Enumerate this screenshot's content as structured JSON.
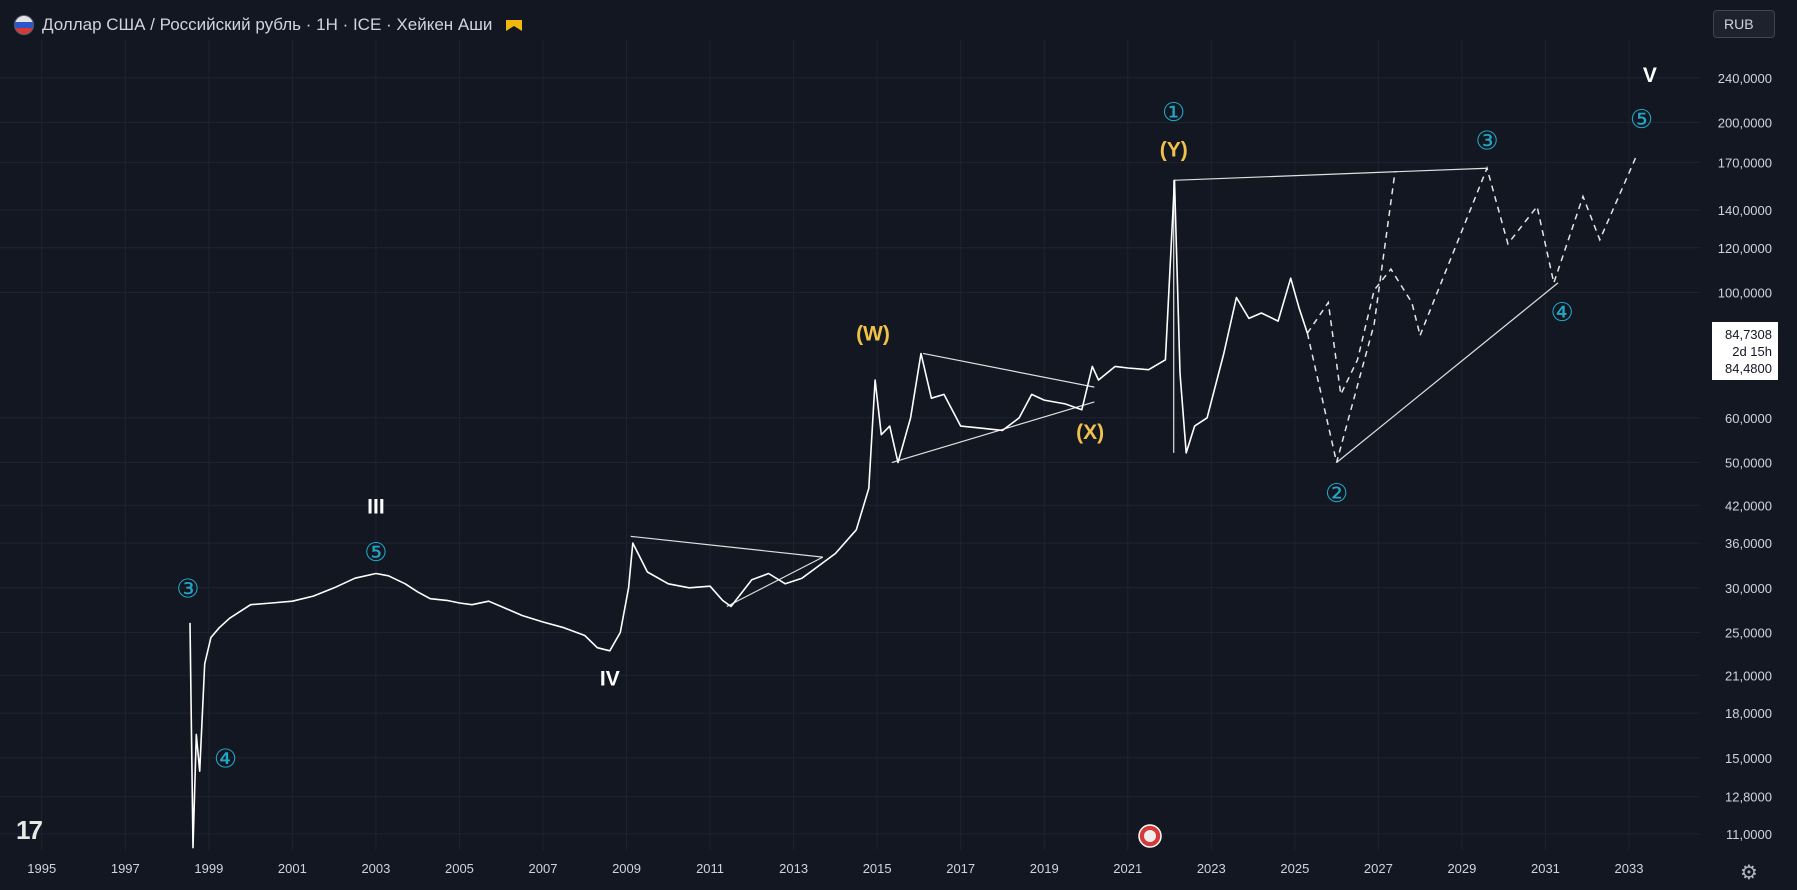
{
  "header": {
    "title": "Доллар США / Российский рубль · 1H · ICE · Хейкен Аши",
    "currency": "RUB"
  },
  "price_box": {
    "price": "84,7308",
    "countdown": "2d 15h",
    "price2": "84,4800"
  },
  "colors": {
    "background": "#131722",
    "price_line": "#ffffff",
    "grid": "#1f2330",
    "wave_circle": "#22a7c4",
    "wave_abc": "#f0c24b",
    "wave_major": "#ffffff"
  },
  "chart_data": {
    "type": "line",
    "title": "Доллар США / Российский рубль · 1H · ICE · Хейкен Аши",
    "xlabel": "",
    "ylabel": "",
    "y_scale": "log",
    "xlim": [
      1994.0,
      2034.7
    ],
    "ylim": [
      10300,
      280000
    ],
    "grid": true,
    "x_ticks": [
      "1995",
      "1997",
      "1999",
      "2001",
      "2003",
      "2005",
      "2007",
      "2009",
      "2011",
      "2013",
      "2015",
      "2017",
      "2019",
      "2021",
      "2023",
      "2025",
      "2027",
      "2029",
      "2031",
      "2033"
    ],
    "y_ticks": [
      {
        "value": 240000,
        "label": "240,0000"
      },
      {
        "value": 200000,
        "label": "200,0000"
      },
      {
        "value": 170000,
        "label": "170,0000"
      },
      {
        "value": 140000,
        "label": "140,0000"
      },
      {
        "value": 120000,
        "label": "120,0000"
      },
      {
        "value": 100000,
        "label": "100,0000"
      },
      {
        "value": 60000,
        "label": "60,0000"
      },
      {
        "value": 50000,
        "label": "50,0000"
      },
      {
        "value": 42000,
        "label": "42,0000"
      },
      {
        "value": 36000,
        "label": "36,0000"
      },
      {
        "value": 30000,
        "label": "30,0000"
      },
      {
        "value": 25000,
        "label": "25,0000"
      },
      {
        "value": 21000,
        "label": "21,0000"
      },
      {
        "value": 18000,
        "label": "18,0000"
      },
      {
        "value": 15000,
        "label": "15,0000"
      },
      {
        "value": 12800,
        "label": "12,8000"
      },
      {
        "value": 11000,
        "label": "11,0000"
      }
    ],
    "series": [
      {
        "points": [
          [
            1998.55,
            26000
          ],
          [
            1998.62,
            10400
          ],
          [
            1998.7,
            16500
          ],
          [
            1998.78,
            14200
          ],
          [
            1998.9,
            22000
          ],
          [
            1999.05,
            24500
          ],
          [
            1999.25,
            25500
          ],
          [
            1999.5,
            26500
          ],
          [
            2000.0,
            28000
          ],
          [
            2000.5,
            28200
          ],
          [
            2001.0,
            28400
          ],
          [
            2001.5,
            29000
          ],
          [
            2002.0,
            30000
          ],
          [
            2002.5,
            31200
          ],
          [
            2003.0,
            31800
          ],
          [
            2003.3,
            31500
          ],
          [
            2003.7,
            30500
          ],
          [
            2004.0,
            29500
          ],
          [
            2004.3,
            28700
          ],
          [
            2004.7,
            28500
          ],
          [
            2005.0,
            28200
          ],
          [
            2005.3,
            28000
          ],
          [
            2005.7,
            28400
          ],
          [
            2006.0,
            27800
          ],
          [
            2006.5,
            26800
          ],
          [
            2007.0,
            26100
          ],
          [
            2007.5,
            25500
          ],
          [
            2008.0,
            24700
          ],
          [
            2008.3,
            23500
          ],
          [
            2008.6,
            23200
          ],
          [
            2008.85,
            25000
          ],
          [
            2009.05,
            30000
          ],
          [
            2009.15,
            36000
          ],
          [
            2009.5,
            32000
          ],
          [
            2010.0,
            30500
          ],
          [
            2010.5,
            30000
          ],
          [
            2011.0,
            30200
          ],
          [
            2011.3,
            28500
          ],
          [
            2011.5,
            27800
          ],
          [
            2012.0,
            31000
          ],
          [
            2012.4,
            31800
          ],
          [
            2012.8,
            30500
          ],
          [
            2013.2,
            31200
          ],
          [
            2013.6,
            32800
          ],
          [
            2014.0,
            34500
          ],
          [
            2014.5,
            38000
          ],
          [
            2014.8,
            45000
          ],
          [
            2014.95,
            70000
          ],
          [
            2015.1,
            56000
          ],
          [
            2015.3,
            58000
          ],
          [
            2015.5,
            50000
          ],
          [
            2015.8,
            60000
          ],
          [
            2016.05,
            78000
          ],
          [
            2016.3,
            65000
          ],
          [
            2016.6,
            66000
          ],
          [
            2017.0,
            58000
          ],
          [
            2017.5,
            57500
          ],
          [
            2018.0,
            57000
          ],
          [
            2018.4,
            60000
          ],
          [
            2018.7,
            66000
          ],
          [
            2019.0,
            64500
          ],
          [
            2019.5,
            63500
          ],
          [
            2019.9,
            62000
          ],
          [
            2020.15,
            74000
          ],
          [
            2020.3,
            70000
          ],
          [
            2020.7,
            74000
          ],
          [
            2021.0,
            73500
          ],
          [
            2021.5,
            73000
          ],
          [
            2021.9,
            76000
          ],
          [
            2022.12,
            158000
          ],
          [
            2022.25,
            72000
          ],
          [
            2022.4,
            52000
          ],
          [
            2022.6,
            58000
          ],
          [
            2022.9,
            60000
          ],
          [
            2023.3,
            78000
          ],
          [
            2023.6,
            98000
          ],
          [
            2023.9,
            90000
          ],
          [
            2024.2,
            92000
          ],
          [
            2024.6,
            89000
          ],
          [
            2024.9,
            106000
          ],
          [
            2025.1,
            94000
          ],
          [
            2025.3,
            84730
          ]
        ]
      }
    ],
    "projections": [
      {
        "style": "dashed",
        "points": [
          [
            2025.3,
            84730
          ],
          [
            2025.8,
            96000
          ],
          [
            2026.1,
            66000
          ],
          [
            2026.5,
            76000
          ],
          [
            2026.9,
            101000
          ],
          [
            2027.3,
            110000
          ],
          [
            2027.8,
            96000
          ],
          [
            2028.0,
            84000
          ]
        ]
      },
      {
        "style": "dashed",
        "points": [
          [
            2025.3,
            84730
          ],
          [
            2026.0,
            50000
          ],
          [
            2026.9,
            88000
          ],
          [
            2027.4,
            164000
          ]
        ]
      },
      {
        "style": "dashed",
        "points": [
          [
            2028.0,
            84000
          ],
          [
            2029.6,
            166000
          ],
          [
            2030.1,
            122000
          ],
          [
            2030.8,
            142000
          ],
          [
            2031.2,
            104000
          ],
          [
            2031.9,
            148000
          ],
          [
            2032.3,
            124000
          ],
          [
            2033.2,
            176000
          ]
        ]
      }
    ],
    "trendlines": [
      [
        [
          2009.1,
          37000
        ],
        [
          2013.7,
          34000
        ]
      ],
      [
        [
          2011.4,
          27800
        ],
        [
          2013.7,
          34000
        ]
      ],
      [
        [
          2016.1,
          78000
        ],
        [
          2020.2,
          68000
        ]
      ],
      [
        [
          2015.35,
          50000
        ],
        [
          2020.2,
          64000
        ]
      ],
      [
        [
          2022.1,
          158000
        ],
        [
          2029.6,
          166000
        ]
      ],
      [
        [
          2022.1,
          158000
        ],
        [
          2022.1,
          52000
        ]
      ],
      [
        [
          2026.0,
          50000
        ],
        [
          2031.3,
          104000
        ]
      ]
    ],
    "annotations": [
      {
        "text": "③",
        "x": 1998.5,
        "y": 29800,
        "kind": "circle"
      },
      {
        "text": "④",
        "x": 1999.4,
        "y": 14900,
        "kind": "circle"
      },
      {
        "text": "III",
        "x": 2003.0,
        "y": 42000,
        "kind": "major"
      },
      {
        "text": "⑤",
        "x": 2003.0,
        "y": 34600,
        "kind": "circle"
      },
      {
        "text": "IV",
        "x": 2008.6,
        "y": 20800,
        "kind": "major"
      },
      {
        "text": "(W)",
        "x": 2014.9,
        "y": 85000,
        "kind": "abc"
      },
      {
        "text": "(X)",
        "x": 2020.1,
        "y": 56800,
        "kind": "abc"
      },
      {
        "text": "(Y)",
        "x": 2022.1,
        "y": 180000,
        "kind": "abc"
      },
      {
        "text": "①",
        "x": 2022.1,
        "y": 208000,
        "kind": "circle"
      },
      {
        "text": "②",
        "x": 2026.0,
        "y": 44000,
        "kind": "circle"
      },
      {
        "text": "③",
        "x": 2029.6,
        "y": 185000,
        "kind": "circle"
      },
      {
        "text": "④",
        "x": 2031.4,
        "y": 92000,
        "kind": "circle"
      },
      {
        "text": "⑤",
        "x": 2033.3,
        "y": 202000,
        "kind": "circle"
      },
      {
        "text": "V",
        "x": 2033.5,
        "y": 244000,
        "kind": "major"
      }
    ]
  }
}
